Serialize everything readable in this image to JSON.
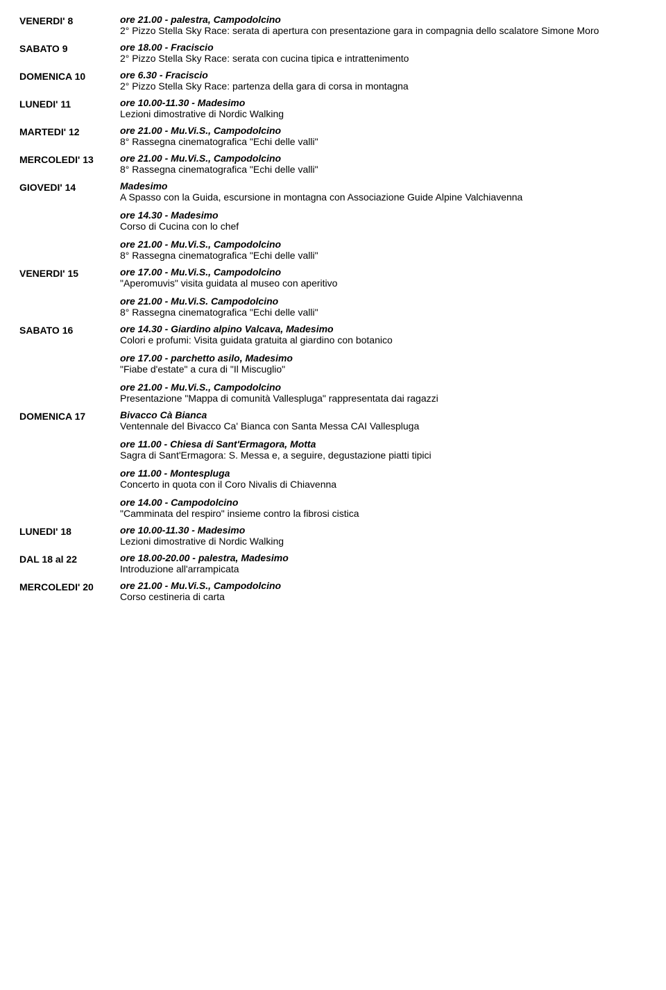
{
  "entries": [
    {
      "day": "VENERDI' 8",
      "blocks": [
        {
          "time": "ore 21.00 - palestra, Campodolcino",
          "desc": "2° Pizzo Stella Sky Race: serata di apertura con presentazione gara in compagnia dello scalatore Simone Moro"
        }
      ]
    },
    {
      "day": "SABATO 9",
      "blocks": [
        {
          "time": "ore 18.00 - Fraciscio",
          "desc": "2° Pizzo Stella Sky Race: serata con cucina tipica e intrattenimento"
        }
      ]
    },
    {
      "day": "DOMENICA 10",
      "blocks": [
        {
          "time": "ore 6.30 - Fraciscio",
          "desc": "2° Pizzo Stella Sky Race: partenza della gara di corsa in montagna"
        }
      ]
    },
    {
      "day": "LUNEDI' 11",
      "blocks": [
        {
          "time": "ore 10.00-11.30 - Madesimo",
          "desc": "Lezioni dimostrative di Nordic Walking"
        }
      ]
    },
    {
      "day": "MARTEDI' 12",
      "blocks": [
        {
          "time": "ore 21.00 - Mu.Vi.S., Campodolcino",
          "desc": "8° Rassegna cinematografica \"Echi delle valli\""
        }
      ]
    },
    {
      "day": "MERCOLEDI' 13",
      "blocks": [
        {
          "time": "ore 21.00 - Mu.Vi.S., Campodolcino",
          "desc": "8° Rassegna cinematografica \"Echi delle valli\""
        }
      ]
    },
    {
      "day": "GIOVEDI' 14",
      "blocks": [
        {
          "time": "Madesimo",
          "desc": "A Spasso con la Guida, escursione in montagna con Associazione Guide Alpine Valchiavenna"
        },
        {
          "time": "ore 14.30 - Madesimo",
          "desc": "Corso di Cucina con lo chef"
        },
        {
          "time": "ore 21.00 - Mu.Vi.S., Campodolcino",
          "desc": "8° Rassegna cinematografica \"Echi delle valli\""
        }
      ]
    },
    {
      "day": "VENERDI' 15",
      "blocks": [
        {
          "time": "ore 17.00 - Mu.Vi.S., Campodolcino",
          "desc": "\"Aperomuvis\" visita guidata al museo con aperitivo"
        },
        {
          "time": "ore 21.00 - Mu.Vi.S. Campodolcino",
          "desc": "8° Rassegna cinematografica \"Echi delle valli\""
        }
      ]
    },
    {
      "day": "SABATO 16",
      "blocks": [
        {
          "time": "ore 14.30 - Giardino alpino Valcava, Madesimo",
          "desc": "Colori e profumi: Visita guidata gratuita al giardino con botanico"
        },
        {
          "time": "ore 17.00 - parchetto asilo, Madesimo",
          "desc": "\"Fiabe d'estate\" a cura di \"Il Miscuglio\""
        },
        {
          "time": "ore 21.00 - Mu.Vi.S., Campodolcino",
          "desc": "Presentazione \"Mappa di comunità Vallespluga\" rappresentata dai ragazzi"
        }
      ]
    },
    {
      "day": "DOMENICA 17",
      "blocks": [
        {
          "time": "Bivacco Cà Bianca",
          "desc": "Ventennale del Bivacco Ca' Bianca con Santa Messa CAI Vallespluga"
        },
        {
          "time": "ore 11.00 - Chiesa di Sant'Ermagora, Motta",
          "desc": "Sagra di Sant'Ermagora: S. Messa e, a seguire, degustazione piatti tipici"
        },
        {
          "time": "ore 11.00 - Montespluga",
          "desc": "Concerto in quota con il Coro Nivalis di Chiavenna"
        },
        {
          "time": "ore 14.00 - Campodolcino",
          "desc": "\"Camminata del respiro\" insieme contro la fibrosi cistica"
        }
      ]
    },
    {
      "day": "LUNEDI' 18",
      "blocks": [
        {
          "time": "ore 10.00-11.30 - Madesimo",
          "desc": "Lezioni dimostrative di Nordic Walking"
        }
      ]
    },
    {
      "day": "DAL 18 al 22",
      "blocks": [
        {
          "time": "ore 18.00-20.00 - palestra, Madesimo",
          "desc": "Introduzione all'arrampicata"
        }
      ]
    },
    {
      "day": "MERCOLEDI' 20",
      "blocks": [
        {
          "time": "ore 21.00 - Mu.Vi.S., Campodolcino",
          "desc": "Corso cestineria di carta"
        }
      ]
    }
  ]
}
